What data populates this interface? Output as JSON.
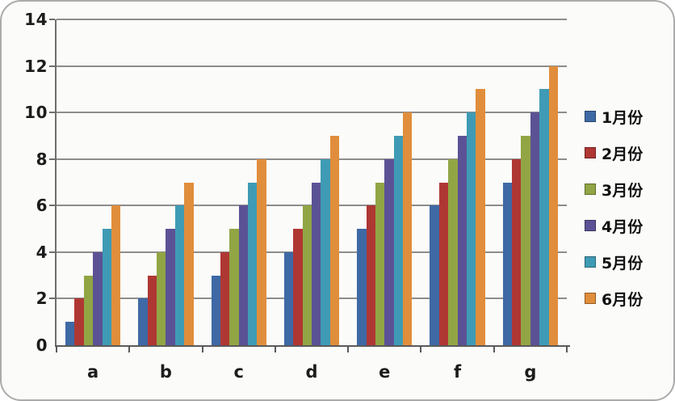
{
  "chart_data": {
    "type": "bar",
    "title": "",
    "xlabel": "",
    "ylabel": "",
    "categories": [
      "a",
      "b",
      "c",
      "d",
      "e",
      "f",
      "g"
    ],
    "series": [
      {
        "name": "1月份",
        "color": "#3e69a5",
        "values": [
          1,
          2,
          3,
          4,
          5,
          6,
          7
        ]
      },
      {
        "name": "2月份",
        "color": "#af3733",
        "values": [
          2,
          3,
          4,
          5,
          6,
          7,
          8
        ]
      },
      {
        "name": "3月份",
        "color": "#92a545",
        "values": [
          3,
          4,
          5,
          6,
          7,
          8,
          9
        ]
      },
      {
        "name": "4月份",
        "color": "#5b5295",
        "values": [
          4,
          5,
          6,
          7,
          8,
          9,
          10
        ]
      },
      {
        "name": "5月份",
        "color": "#3f9bb5",
        "values": [
          5,
          6,
          7,
          8,
          9,
          10,
          11
        ]
      },
      {
        "name": "6月份",
        "color": "#e08e3c",
        "values": [
          6,
          7,
          8,
          9,
          10,
          11,
          12
        ]
      }
    ],
    "ylim": [
      0,
      14
    ],
    "yticks": [
      0,
      2,
      4,
      6,
      8,
      10,
      12,
      14
    ],
    "grid": true,
    "legend_position": "right"
  }
}
